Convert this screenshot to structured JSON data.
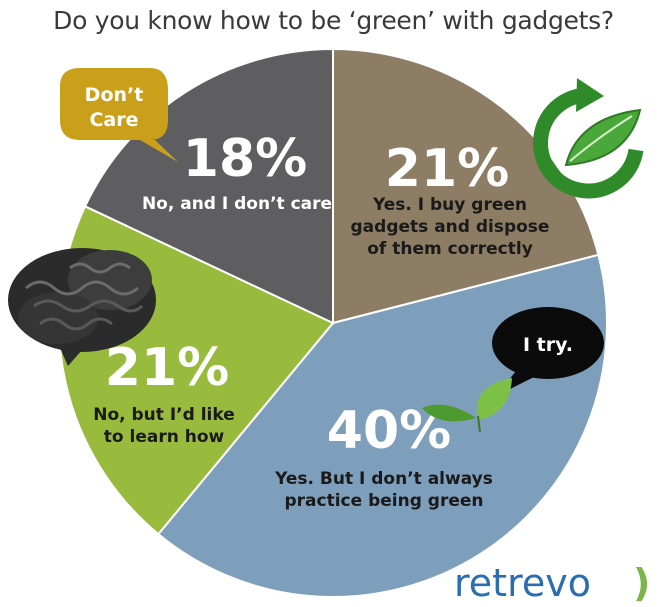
{
  "title": "Do you know how to be ‘green’ with gadgets?",
  "brand": {
    "name": "retrevo",
    "mark": ")"
  },
  "bubbles": {
    "dont_care": [
      "Don’t",
      "Care"
    ],
    "i_try": "I try."
  },
  "colors": {
    "no_dont_care": "#5e5e60",
    "yes_buy_green": "#8c7d64",
    "yes_dont_always": "#7e9fbb",
    "no_like_to_learn": "#99bb3d",
    "bubble_yellow": "#caa01b",
    "bubble_black": "#0b0b0b",
    "brand_blue": "#2a6db0"
  },
  "icons": [
    "recycle-leaf-icon",
    "brain-icon",
    "leaves-icon"
  ],
  "chart_data": {
    "type": "pie",
    "title": "Do you know how to be ‘green’ with gadgets?",
    "slices": [
      {
        "value": 21,
        "pct_label": "21%",
        "label_lines": [
          "Yes. I buy green",
          "gadgets and dispose",
          "of them correctly"
        ]
      },
      {
        "value": 40,
        "pct_label": "40%",
        "label_lines": [
          "Yes. But I don’t always",
          "practice being green"
        ]
      },
      {
        "value": 21,
        "pct_label": "21%",
        "label_lines": [
          "No, but I’d like",
          "to learn how"
        ]
      },
      {
        "value": 18,
        "pct_label": "18%",
        "label_lines": [
          "No, and I don’t care"
        ]
      }
    ]
  }
}
